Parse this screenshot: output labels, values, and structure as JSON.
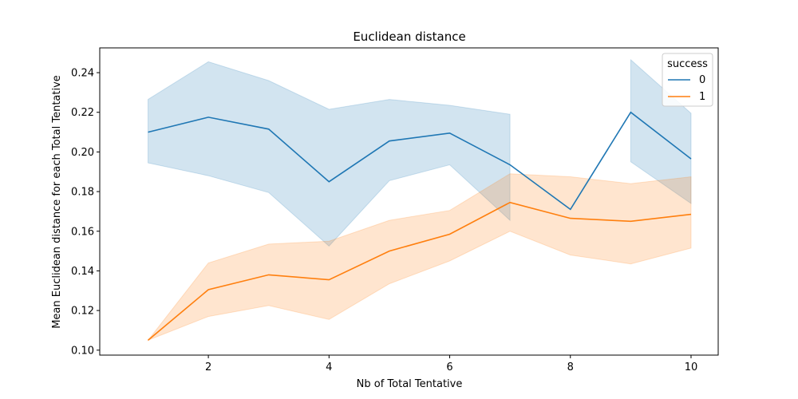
{
  "chart_data": {
    "type": "line",
    "title": "Euclidean distance",
    "xlabel": "Nb of Total Tentative",
    "ylabel": "Mean Euclidean distance for each Total Tentative",
    "xlim": [
      0.2,
      10.45
    ],
    "ylim": [
      0.0975,
      0.2525
    ],
    "xticks": [
      2,
      4,
      6,
      8,
      10
    ],
    "yticks": [
      0.1,
      0.12,
      0.14,
      0.16,
      0.18,
      0.2,
      0.22,
      0.24
    ],
    "grid": false,
    "legend": {
      "title": "success",
      "placement": "top-right"
    },
    "series": [
      {
        "name": "0",
        "color": "#1f77b4",
        "points": [
          {
            "x": 1,
            "y": 0.21,
            "lo": 0.1945,
            "hi": 0.2265
          },
          {
            "x": 2,
            "y": 0.2175,
            "lo": 0.188,
            "hi": 0.2455
          },
          {
            "x": 3,
            "y": 0.2115,
            "lo": 0.1795,
            "hi": 0.236
          },
          {
            "x": 4,
            "y": 0.185,
            "lo": 0.1525,
            "hi": 0.2215
          },
          {
            "x": 5,
            "y": 0.2055,
            "lo": 0.1855,
            "hi": 0.2265
          },
          {
            "x": 6,
            "y": 0.2095,
            "lo": 0.1935,
            "hi": 0.2235
          },
          {
            "x": 7,
            "y": 0.1935,
            "lo": 0.1655,
            "hi": 0.219
          }
        ],
        "points_extra": [
          {
            "x": 8,
            "y": 0.171
          }
        ],
        "points_tail": [
          {
            "x": 9,
            "y": 0.22,
            "lo": 0.195,
            "hi": 0.2465
          },
          {
            "x": 10,
            "y": 0.1965,
            "lo": 0.174,
            "hi": 0.2195
          }
        ]
      },
      {
        "name": "1",
        "color": "#ff7f0e",
        "points": [
          {
            "x": 1,
            "y": 0.105,
            "lo": 0.105,
            "hi": 0.105
          },
          {
            "x": 2,
            "y": 0.1305,
            "lo": 0.117,
            "hi": 0.144
          },
          {
            "x": 3,
            "y": 0.138,
            "lo": 0.1225,
            "hi": 0.1535
          },
          {
            "x": 4,
            "y": 0.1355,
            "lo": 0.1155,
            "hi": 0.155
          },
          {
            "x": 5,
            "y": 0.15,
            "lo": 0.1335,
            "hi": 0.1655
          },
          {
            "x": 6,
            "y": 0.1585,
            "lo": 0.145,
            "hi": 0.1705
          },
          {
            "x": 7,
            "y": 0.1745,
            "lo": 0.16,
            "hi": 0.189
          },
          {
            "x": 8,
            "y": 0.1665,
            "lo": 0.148,
            "hi": 0.1875
          },
          {
            "x": 9,
            "y": 0.165,
            "lo": 0.1435,
            "hi": 0.184
          },
          {
            "x": 10,
            "y": 0.1685,
            "lo": 0.1515,
            "hi": 0.1875
          }
        ]
      }
    ]
  }
}
